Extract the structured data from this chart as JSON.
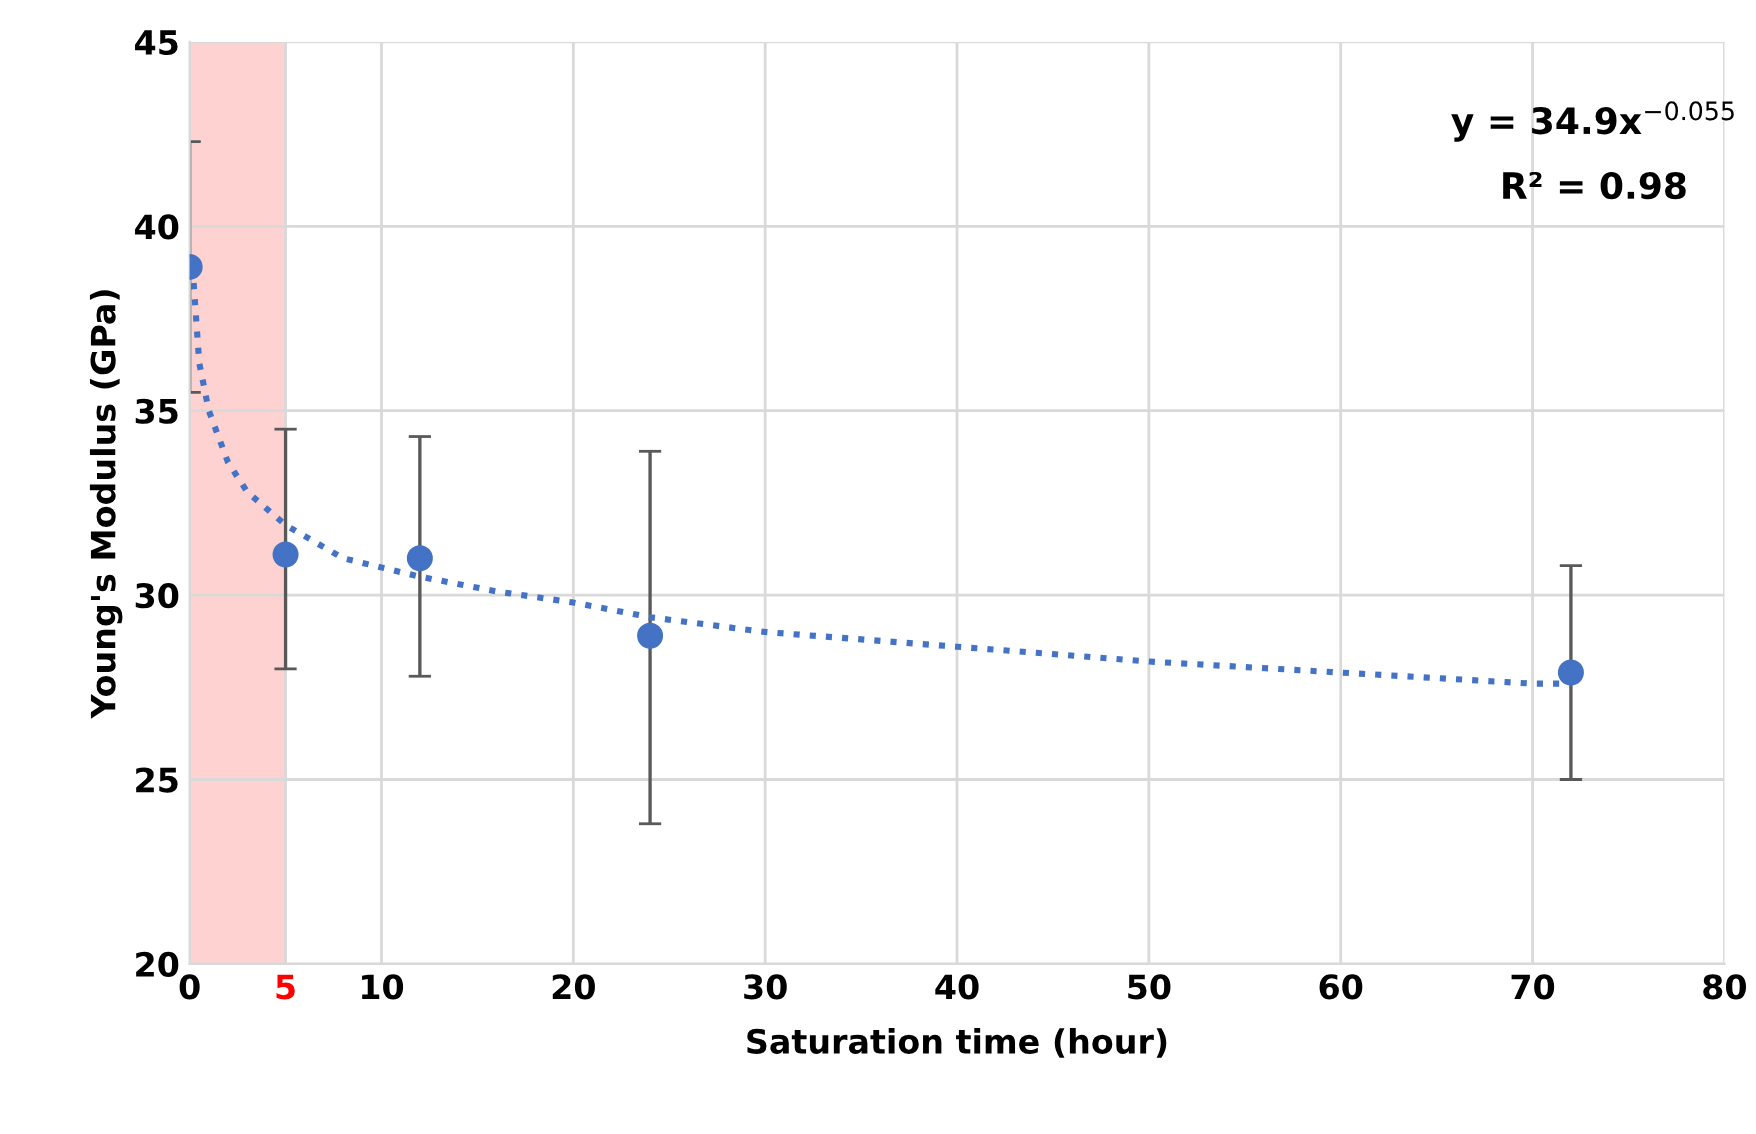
{
  "chart_data": {
    "type": "scatter",
    "xlabel": "Saturation time (hour)",
    "ylabel": "Young's Modulus (GPa)",
    "xlim": [
      0,
      80
    ],
    "xticks": [
      0,
      5,
      10,
      20,
      30,
      40,
      50,
      60,
      70,
      80
    ],
    "ylim": [
      20,
      45
    ],
    "yticks": [
      20,
      25,
      30,
      35,
      40,
      45
    ],
    "grid": true,
    "series": [
      {
        "marker": "circle",
        "color": "#4472c4",
        "x": [
          0,
          5,
          12,
          24,
          72
        ],
        "values": [
          38.9,
          31.1,
          31.0,
          28.9,
          27.9
        ],
        "errors": [
          [
            35.5,
            42.3
          ],
          [
            28.0,
            34.5
          ],
          [
            27.8,
            34.3
          ],
          [
            23.8,
            33.9
          ],
          [
            25.0,
            30.8
          ]
        ]
      },
      {
        "type": "line",
        "color": "#4472c4",
        "line_style": "dotted",
        "x": [
          0.15,
          0.5,
          1,
          2,
          3,
          5,
          8,
          12,
          16,
          20,
          24,
          30,
          40,
          50,
          60,
          70,
          72
        ],
        "values": [
          38.9,
          36.3,
          35.0,
          33.6,
          32.8,
          31.9,
          31.0,
          30.5,
          30.1,
          29.8,
          29.4,
          29.0,
          28.6,
          28.2,
          27.9,
          27.6,
          27.6
        ]
      }
    ],
    "bands": [
      {
        "axis": "x",
        "from": 0,
        "to": 5,
        "color": "#ffd2d2"
      }
    ],
    "annotations": [
      "y = 34.9x$^{−0.055}$",
      "R² = 0.98"
    ]
  }
}
